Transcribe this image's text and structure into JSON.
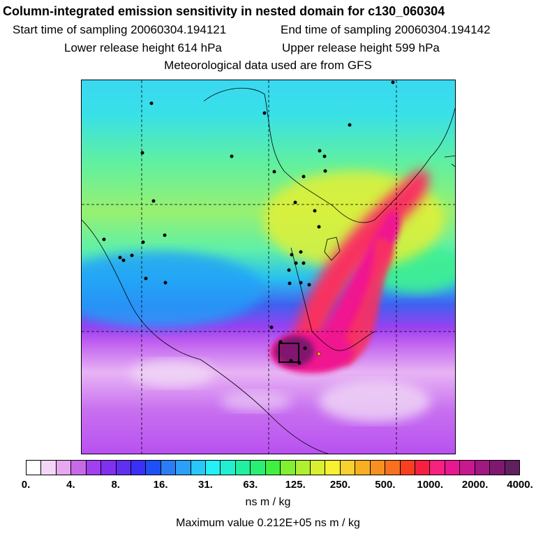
{
  "header": {
    "title": "Column-integrated emission sensitivity in nested domain for c130_060304",
    "start_time": "Start time of sampling 20060304.194121",
    "end_time": "End time of sampling 20060304.194142",
    "lower_release": "Lower release height  614 hPa",
    "upper_release": "Upper release height  599 hPa",
    "met_data": "Meteorological data used are from GFS"
  },
  "colorbar": {
    "ticks": [
      "0.",
      "4.",
      "8.",
      "16.",
      "31.",
      "63.",
      "125.",
      "250.",
      "500.",
      "1000.",
      "2000.",
      "4000."
    ],
    "colors": [
      "#ffffff",
      "#f4d6f6",
      "#e8a8ee",
      "#c86ae8",
      "#a040f0",
      "#8030f0",
      "#6030f0",
      "#3a30f8",
      "#1e50f8",
      "#2c7cf8",
      "#2aa0f8",
      "#28c8f8",
      "#24f0f8",
      "#20f0d0",
      "#20f0a0",
      "#28f070",
      "#40f040",
      "#80f030",
      "#b0f030",
      "#d8f030",
      "#f8f030",
      "#f8d030",
      "#f8b020",
      "#f89020",
      "#f87020",
      "#f84020",
      "#f82040",
      "#f82080",
      "#e81890",
      "#c81890",
      "#a01880",
      "#801870",
      "#602060"
    ],
    "unit": "ns m / kg",
    "max_value": "Maximum value  0.212E+05 ns m / kg"
  },
  "map": {
    "grid_lines_dashed": true,
    "release_box": true
  }
}
